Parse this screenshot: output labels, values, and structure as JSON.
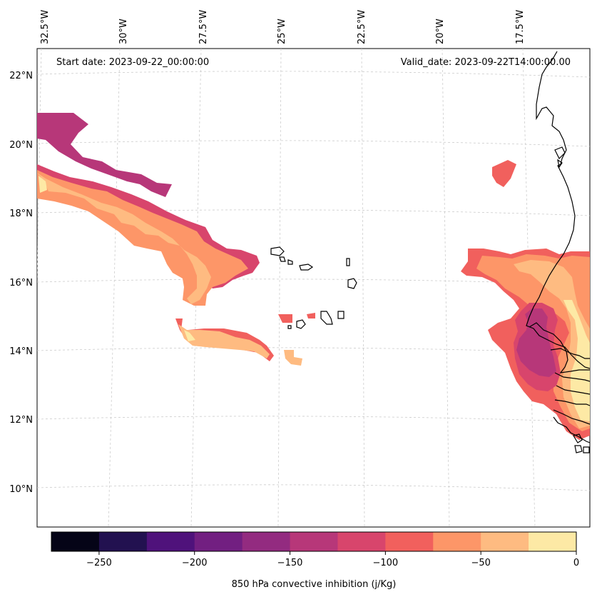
{
  "map": {
    "start_date": "Start date: 2023-09-22_00:00:00",
    "valid_date": "Valid_date: 2023-09-22T14:00:00.00",
    "lon_labels": [
      "32.5°W",
      "30°W",
      "27.5°W",
      "25°W",
      "22.5°W",
      "20°W",
      "17.5°W"
    ],
    "lat_labels": [
      "22°N",
      "20°N",
      "18°N",
      "16°N",
      "14°N",
      "12°N",
      "10°N"
    ]
  },
  "colorbar": {
    "label": "850 hPa convective inhibition (j/Kg)",
    "ticks": [
      "−250",
      "−200",
      "−150",
      "−100",
      "−50",
      "0"
    ],
    "levels": [
      -275,
      -250,
      -225,
      -200,
      -175,
      -150,
      -125,
      -100,
      -75,
      -50,
      -25,
      0
    ],
    "colors": [
      "#050417",
      "#221150",
      "#4f127b",
      "#721f81",
      "#932b80",
      "#b73779",
      "#d8456c",
      "#f1605d",
      "#fd9668",
      "#febb81",
      "#fde9a5"
    ]
  },
  "colors": {
    "gridline": "#cccccc",
    "coast": "#000000"
  }
}
